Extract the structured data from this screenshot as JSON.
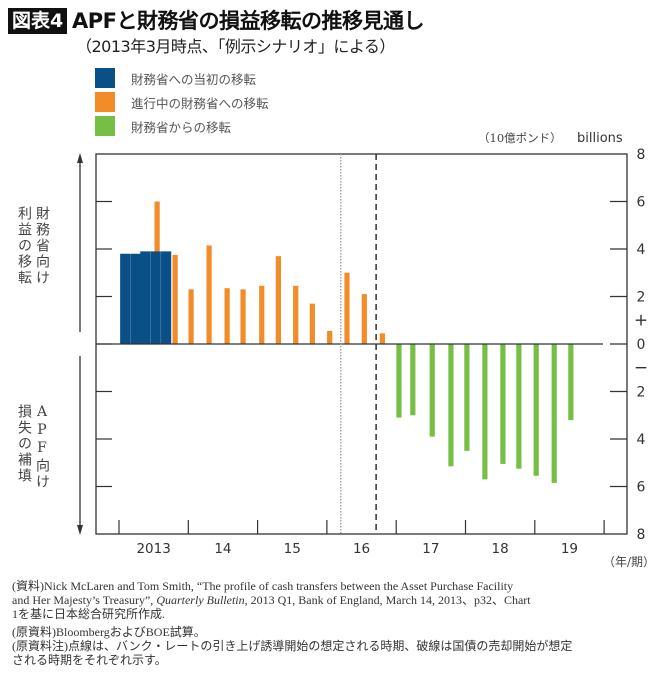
{
  "header": {
    "badge": "図表4",
    "title": "APFと財務省の損益移転の推移見通し",
    "subtitle": "（2013年3月時点、「例示シナリオ」による）"
  },
  "legend": [
    {
      "label": "財務省への当初の移転",
      "color": "#0b4f87"
    },
    {
      "label": "進行中の財務省への移転",
      "color": "#f28c28"
    },
    {
      "label": "財務省からの移転",
      "color": "#77bf44"
    }
  ],
  "axis_labels": {
    "unit_jp": "（10億ポンド）",
    "unit_en": "billions",
    "x_unit": "（年/期）",
    "upper_col_right": "財務省向け",
    "upper_col_left": "利益の移転",
    "lower_col_right": "APF向け",
    "lower_col_left": "損失の補填"
  },
  "chart_data": {
    "type": "bar",
    "xlim": [
      2013,
      2020
    ],
    "ylim": [
      -8,
      8
    ],
    "y_tick_labels": [
      "8",
      "6",
      "4",
      "2",
      "+",
      "0",
      "−",
      "2",
      "4",
      "6",
      "8"
    ],
    "x_tick_labels": [
      "2013",
      "14",
      "15",
      "16",
      "17",
      "18",
      "19"
    ],
    "grid": false,
    "legend_placement": "top-left",
    "series": [
      {
        "name": "財務省への当初の移転",
        "color": "#0b4f87",
        "x": [
          2013.09,
          2013.24,
          2013.38,
          2013.53,
          2013.68
        ],
        "values": [
          3.8,
          3.8,
          3.9,
          3.9,
          3.9
        ]
      },
      {
        "name": "進行中の財務省への移転",
        "color": "#f28c28",
        "x": [
          2013.55,
          2013.81,
          2014.04,
          2014.3,
          2014.56,
          2014.79,
          2015.06,
          2015.3,
          2015.55,
          2015.79,
          2016.04,
          2016.29,
          2016.54,
          2016.8
        ],
        "values": [
          6.0,
          3.75,
          2.3,
          4.15,
          2.35,
          2.3,
          2.45,
          3.7,
          2.45,
          1.7,
          0.55,
          3.0,
          2.1,
          0.45
        ]
      },
      {
        "name": "財務省からの移転",
        "color": "#77bf44",
        "x": [
          2017.04,
          2017.24,
          2017.52,
          2017.79,
          2018.02,
          2018.28,
          2018.54,
          2018.77,
          2019.02,
          2019.28,
          2019.52
        ],
        "values": [
          -3.1,
          -3.0,
          -3.9,
          -5.15,
          -4.5,
          -5.7,
          -5.05,
          -5.25,
          -5.55,
          -5.85,
          -3.2
        ]
      }
    ],
    "reference_lines": [
      {
        "style": "dotted",
        "x": 2016.2
      },
      {
        "style": "dashed",
        "x": 2016.71
      }
    ]
  },
  "footer": {
    "line1": "(資料)Nick McLaren and Tom Smith, “The profile of cash transfers between the Asset Purchase Facility",
    "line2a": "and Her Majesty’s Treasury”, ",
    "line2b": "Quarterly Bulletin",
    "line2c": ", 2013 Q1, Bank of England, March 14, 2013、p32、Chart",
    "line3": "1を基に日本総合研究所作成.",
    "line4": "(原資料)BloombergおよびBOE試算。",
    "line5": "(原資料注)点線は、バンク・レートの引き上げ誘導開始の想定される時期、破線は国債の売却開始が想定",
    "line6": "される時期をそれぞれ示す。"
  }
}
